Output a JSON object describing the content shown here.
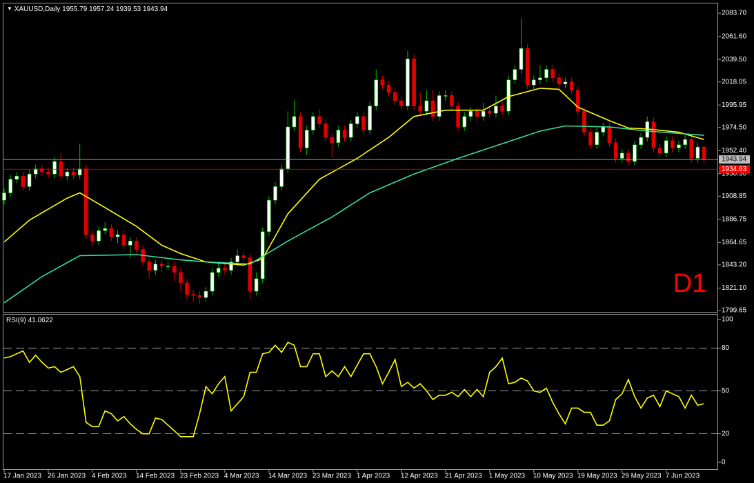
{
  "chart_data": [
    {
      "type": "candlestick",
      "title": "XAUUSD,Daily",
      "open": [
        1905,
        1912,
        1925,
        1928,
        1918,
        1930,
        1935,
        1932,
        1930,
        1942,
        1928,
        1932,
        1929,
        1935,
        1872,
        1866,
        1876,
        1878,
        1870,
        1872,
        1862,
        1866,
        1858,
        1846,
        1838,
        1844,
        1842,
        1842,
        1836,
        1826,
        1815,
        1814,
        1812,
        1818,
        1836,
        1840,
        1838,
        1846,
        1852,
        1850,
        1818,
        1830,
        1875,
        1905,
        1918,
        1935,
        1975,
        1985,
        1955,
        1972,
        1985,
        1978,
        1965,
        1960,
        1972,
        1965,
        1978,
        1985,
        1972,
        1995,
        2020,
        2015,
        2008,
        2000,
        1995,
        2040,
        1995,
        1990,
        2000,
        1985,
        2005,
        2005,
        1995,
        1975,
        1985,
        1990,
        1985,
        1990,
        1988,
        1995,
        1990,
        2020,
        2030,
        2050,
        2015,
        2020,
        2022,
        2030,
        2022,
        2016,
        2018,
        2010,
        1990,
        1970,
        1958,
        1970,
        1975,
        1960,
        1945,
        1950,
        1942,
        1958,
        1965,
        1980,
        1955,
        1950,
        1962,
        1955,
        1958,
        1963,
        1945,
        1955.79
      ],
      "high": [
        1916,
        1929,
        1932,
        1932,
        1934,
        1939,
        1939,
        1936,
        1946,
        1950,
        1936,
        1936,
        1959,
        1939,
        1876,
        1880,
        1884,
        1882,
        1876,
        1876,
        1870,
        1870,
        1862,
        1850,
        1848,
        1848,
        1846,
        1846,
        1840,
        1830,
        1819,
        1818,
        1822,
        1840,
        1846,
        1844,
        1850,
        1858,
        1856,
        1854,
        1836,
        1879,
        1909,
        1922,
        1939,
        1990,
        2001,
        1989,
        1976,
        1989,
        1992,
        1982,
        1969,
        1976,
        1976,
        1982,
        1989,
        1989,
        1999,
        2030,
        2024,
        2019,
        2012,
        2004,
        2048,
        2044,
        2008,
        2010,
        2010,
        2009,
        2010,
        2009,
        1999,
        1989,
        1994,
        1994,
        1998,
        1994,
        2005,
        1999,
        2024,
        2034,
        2079,
        2054,
        2024,
        2034,
        2034,
        2034,
        2026,
        2022,
        2022,
        2014,
        1994,
        1974,
        1974,
        1979,
        1979,
        1964,
        1954,
        1954,
        1962,
        1969,
        1985,
        1984,
        1959,
        1966,
        1966,
        1962,
        1967,
        1967,
        1960,
        1957.24
      ],
      "low": [
        1901,
        1908,
        1921,
        1914,
        1914,
        1926,
        1928,
        1926,
        1926,
        1924,
        1924,
        1925,
        1925,
        1868,
        1862,
        1862,
        1872,
        1866,
        1864,
        1858,
        1850,
        1854,
        1842,
        1830,
        1834,
        1836,
        1838,
        1828,
        1818,
        1809,
        1808,
        1806,
        1808,
        1814,
        1832,
        1834,
        1834,
        1842,
        1846,
        1810,
        1814,
        1826,
        1871,
        1901,
        1914,
        1931,
        1971,
        1951,
        1948,
        1968,
        1974,
        1961,
        1946,
        1956,
        1961,
        1961,
        1974,
        1968,
        1968,
        1991,
        2011,
        2004,
        1996,
        1991,
        1991,
        1991,
        1986,
        1986,
        1981,
        1981,
        2000,
        1991,
        1971,
        1971,
        1981,
        1981,
        1981,
        1984,
        1984,
        1986,
        1986,
        2016,
        2026,
        2011,
        2011,
        2016,
        2018,
        2018,
        2012,
        2012,
        2006,
        1986,
        1966,
        1954,
        1954,
        1966,
        1956,
        1941,
        1941,
        1938,
        1938,
        1954,
        1961,
        1951,
        1946,
        1946,
        1951,
        1951,
        1954,
        1941,
        1941,
        1939.53
      ],
      "close": [
        1912,
        1925,
        1928,
        1918,
        1930,
        1935,
        1932,
        1930,
        1942,
        1928,
        1932,
        1929,
        1935,
        1872,
        1866,
        1876,
        1878,
        1870,
        1872,
        1862,
        1866,
        1858,
        1846,
        1838,
        1844,
        1842,
        1842,
        1836,
        1826,
        1815,
        1814,
        1812,
        1818,
        1836,
        1840,
        1838,
        1846,
        1852,
        1850,
        1818,
        1830,
        1875,
        1905,
        1918,
        1935,
        1975,
        1985,
        1955,
        1972,
        1985,
        1978,
        1965,
        1960,
        1972,
        1965,
        1978,
        1985,
        1972,
        1995,
        2020,
        2015,
        2008,
        2000,
        1995,
        2040,
        1995,
        1990,
        2000,
        1985,
        2005,
        2005,
        1995,
        1975,
        1985,
        1990,
        1985,
        1990,
        1988,
        1995,
        1990,
        2020,
        2030,
        2050,
        2015,
        2020,
        2022,
        2030,
        2022,
        2016,
        2018,
        2010,
        1990,
        1970,
        1958,
        1970,
        1975,
        1960,
        1945,
        1950,
        1942,
        1958,
        1965,
        1980,
        1955,
        1950,
        1962,
        1955,
        1958,
        1963,
        1945,
        1955.79,
        1943.94
      ],
      "up_color": "#ffffff",
      "up_wick_color": "#00c000",
      "down_color": "#e00000",
      "down_wick_color": "#e00000",
      "xticks": [
        {
          "value": 0,
          "label": "17 Jan 2023"
        },
        {
          "value": 7,
          "label": "26 Jan 2023"
        },
        {
          "value": 14,
          "label": "4 Feb 2023"
        },
        {
          "value": 21,
          "label": "14 Feb 2023"
        },
        {
          "value": 28,
          "label": "23 Feb 2023"
        },
        {
          "value": 35,
          "label": "4 Mar 2023"
        },
        {
          "value": 42,
          "label": "14 Mar 2023"
        },
        {
          "value": 49,
          "label": "23 Mar 2023"
        },
        {
          "value": 56,
          "label": "1 Apr 2023"
        },
        {
          "value": 63,
          "label": "12 Apr 2023"
        },
        {
          "value": 70,
          "label": "21 Apr 2023"
        },
        {
          "value": 77,
          "label": "1 May 2023"
        },
        {
          "value": 84,
          "label": "10 May 2023"
        },
        {
          "value": 91,
          "label": "19 May 2023"
        },
        {
          "value": 98,
          "label": "29 May 2023"
        },
        {
          "value": 105,
          "label": "7 Jun 2023"
        }
      ],
      "ylim": [
        1798.3,
        2093
      ],
      "yticks": [
        {
          "value": 2083.7,
          "label": "2083.70"
        },
        {
          "value": 2061.6,
          "label": "2061.60"
        },
        {
          "value": 2039.5,
          "label": "2039.50"
        },
        {
          "value": 2018.05,
          "label": "2018.05"
        },
        {
          "value": 1995.95,
          "label": "1995.95"
        },
        {
          "value": 1974.5,
          "label": "1974.50"
        },
        {
          "value": 1952.4,
          "label": "1952.40"
        },
        {
          "value": 1930.3,
          "label": "1930.30"
        },
        {
          "value": 1908.85,
          "label": "1908.85"
        },
        {
          "value": 1886.75,
          "label": "1886.75"
        },
        {
          "value": 1864.65,
          "label": "1864.65"
        },
        {
          "value": 1843.2,
          "label": "1843.20"
        },
        {
          "value": 1821.1,
          "label": "1821.10"
        },
        {
          "value": 1799.65,
          "label": "1799.65"
        }
      ],
      "ma": [
        {
          "color": "#ffff00",
          "x": [
            0,
            4,
            10,
            12,
            16,
            21,
            25,
            28,
            32,
            38,
            41,
            45,
            50,
            56,
            61,
            65,
            70,
            76,
            80,
            85,
            88,
            91,
            96,
            99,
            102,
            107,
            111
          ],
          "values": [
            1865,
            1886,
            1907,
            1912,
            1898,
            1880,
            1862,
            1854,
            1846,
            1843,
            1849,
            1892,
            1925,
            1945,
            1965,
            1985,
            1991,
            1991,
            2004,
            2012,
            2011,
            1994,
            1981,
            1974,
            1973,
            1970,
            1963
          ]
        },
        {
          "color": "#33e0a0",
          "x": [
            0,
            6,
            12,
            21,
            28,
            32,
            39,
            45,
            52,
            58,
            65,
            72,
            78,
            85,
            89,
            96,
            102,
            111
          ],
          "values": [
            1807,
            1832,
            1852,
            1853,
            1848,
            1846,
            1844,
            1866,
            1889,
            1912,
            1930,
            1945,
            1957,
            1971,
            1976,
            1975,
            1971,
            1967
          ]
        }
      ],
      "bid_color": "#c0c0c0",
      "hline": {
        "value": 1934.63,
        "color": "#ff0000"
      },
      "annotation": "D1"
    },
    {
      "type": "line",
      "title": "RSI(9)",
      "color": "#ffff00",
      "values": [
        73,
        74,
        76,
        78,
        70,
        75,
        70,
        66,
        67,
        63,
        65,
        67,
        60,
        28,
        25,
        25,
        36,
        34,
        29,
        32,
        27,
        23,
        20,
        20,
        31,
        30,
        26,
        22,
        18,
        18,
        18,
        34,
        53,
        48,
        55,
        60,
        36,
        41,
        46,
        63,
        63,
        76,
        77,
        82,
        77,
        84,
        82,
        67,
        67,
        76,
        76,
        60,
        64,
        60,
        67,
        60,
        68,
        76,
        76,
        67,
        55,
        63,
        72,
        53,
        56,
        52,
        55,
        50,
        44,
        47,
        47,
        49,
        46,
        51,
        46,
        51,
        46,
        63,
        67,
        73,
        55,
        56,
        59,
        57,
        50,
        49,
        52,
        42,
        34,
        27,
        38,
        38,
        35,
        35,
        26,
        26,
        29,
        44,
        48,
        58,
        46,
        38,
        45,
        47,
        39,
        50,
        48,
        46,
        38,
        47,
        40,
        41.0622
      ],
      "ylim": [
        -4.8,
        103.4
      ],
      "yticks": [
        0,
        20,
        50,
        80,
        100
      ],
      "levels": [
        20,
        50,
        80
      ]
    }
  ]
}
